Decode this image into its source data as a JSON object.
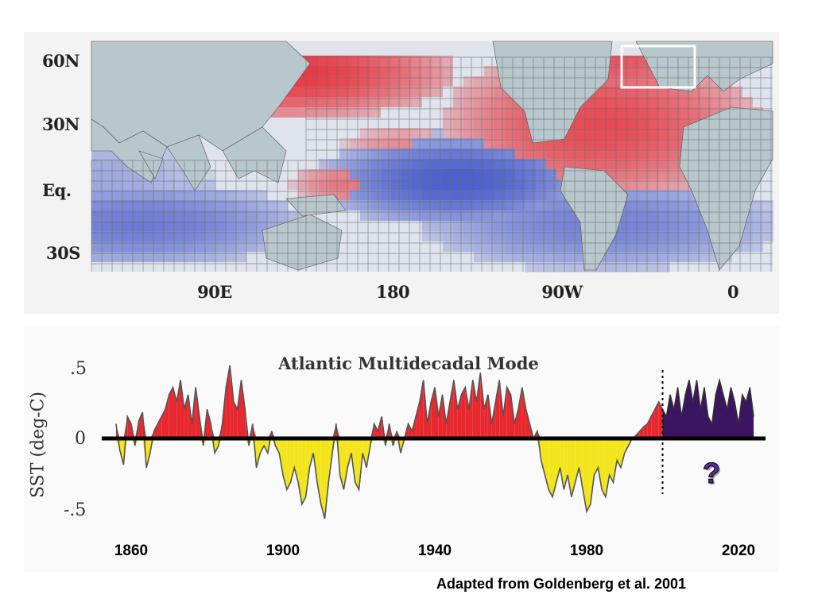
{
  "colors": {
    "ocean": "#dfe3ec",
    "land": "#b7c7cc",
    "warm": "#e8303a",
    "cool": "#3a4fc8",
    "grid": "#6b6b6b",
    "positive": "#e8282e",
    "negative": "#f2e51c",
    "projection": "#3b1560",
    "axis": "#000000"
  },
  "map": {
    "lat_labels": [
      "60N",
      "30N",
      "Eq.",
      "30S"
    ],
    "lon_labels": [
      "90E",
      "180",
      "90W",
      "0"
    ]
  },
  "chart_data": {
    "type": "area",
    "title": "Atlantic Multidecadal Mode",
    "ylabel": "SST (deg-C)",
    "yticks": [
      ".5",
      "0",
      "-.5"
    ],
    "xticks": [
      "1860",
      "1900",
      "1940",
      "1980",
      "2020"
    ],
    "xlim": [
      1856,
      2025
    ],
    "ylim": [
      -0.55,
      0.5
    ],
    "projection_start": 2000,
    "observed": {
      "x": [
        1856,
        1857,
        1858,
        1859,
        1860,
        1861,
        1862,
        1863,
        1864,
        1865,
        1866,
        1867,
        1868,
        1869,
        1870,
        1871,
        1872,
        1873,
        1874,
        1875,
        1876,
        1877,
        1878,
        1879,
        1880,
        1881,
        1882,
        1883,
        1884,
        1885,
        1886,
        1887,
        1888,
        1889,
        1890,
        1891,
        1892,
        1893,
        1894,
        1895,
        1896,
        1897,
        1898,
        1899,
        1900,
        1901,
        1902,
        1903,
        1904,
        1905,
        1906,
        1907,
        1908,
        1909,
        1910,
        1911,
        1912,
        1913,
        1914,
        1915,
        1916,
        1917,
        1918,
        1919,
        1920,
        1921,
        1922,
        1923,
        1924,
        1925,
        1926,
        1927,
        1928,
        1929,
        1930,
        1931,
        1932,
        1933,
        1934,
        1935,
        1936,
        1937,
        1938,
        1939,
        1940,
        1941,
        1942,
        1943,
        1944,
        1945,
        1946,
        1947,
        1948,
        1949,
        1950,
        1951,
        1952,
        1953,
        1954,
        1955,
        1956,
        1957,
        1958,
        1959,
        1960,
        1961,
        1962,
        1963,
        1964,
        1965,
        1966,
        1967,
        1968,
        1969,
        1970,
        1971,
        1972,
        1973,
        1974,
        1975,
        1976,
        1977,
        1978,
        1979,
        1980,
        1981,
        1982,
        1983,
        1984,
        1985,
        1986,
        1987,
        1988,
        1989,
        1990,
        1991,
        1992,
        1993,
        1994,
        1995,
        1996,
        1997,
        1998,
        1999,
        2000
      ],
      "y": [
        0.1,
        -0.08,
        -0.18,
        0.15,
        0.1,
        -0.05,
        0.12,
        0.18,
        -0.2,
        -0.1,
        0.05,
        0.1,
        0.15,
        0.2,
        0.3,
        0.35,
        0.25,
        0.4,
        0.2,
        0.3,
        0.1,
        0.35,
        0.15,
        -0.05,
        0.2,
        0.1,
        -0.1,
        -0.05,
        0.1,
        0.35,
        0.5,
        0.25,
        0.2,
        0.4,
        0.2,
        -0.05,
        0.1,
        -0.2,
        -0.1,
        -0.05,
        -0.1,
        0.05,
        -0.05,
        -0.1,
        -0.25,
        -0.35,
        -0.3,
        -0.2,
        -0.3,
        -0.45,
        -0.4,
        -0.2,
        -0.1,
        -0.3,
        -0.45,
        -0.55,
        -0.3,
        -0.1,
        0.1,
        -0.25,
        -0.35,
        -0.2,
        -0.1,
        -0.3,
        -0.35,
        -0.1,
        -0.2,
        -0.05,
        0.1,
        0.05,
        0.15,
        -0.05,
        0.1,
        -0.05,
        0.05,
        -0.1,
        0.0,
        0.1,
        0.05,
        0.15,
        0.25,
        0.4,
        0.1,
        0.25,
        0.35,
        0.15,
        0.3,
        0.1,
        0.25,
        0.4,
        0.2,
        0.3,
        0.35,
        0.2,
        0.4,
        0.25,
        0.45,
        0.2,
        0.3,
        0.1,
        0.25,
        0.4,
        0.15,
        0.35,
        0.3,
        0.1,
        0.2,
        0.35,
        0.2,
        0.1,
        0.0,
        0.05,
        -0.15,
        -0.25,
        -0.35,
        -0.4,
        -0.3,
        -0.2,
        -0.35,
        -0.25,
        -0.4,
        -0.3,
        -0.2,
        -0.35,
        -0.5,
        -0.45,
        -0.25,
        -0.2,
        -0.35,
        -0.4,
        -0.25,
        -0.3,
        -0.15,
        -0.2,
        -0.1,
        -0.05,
        0.0,
        0.02,
        0.05,
        0.08,
        0.1,
        0.15,
        0.2,
        0.25,
        0.2
      ]
    },
    "projection": {
      "x": [
        2000,
        2001,
        2002,
        2003,
        2004,
        2005,
        2006,
        2007,
        2008,
        2009,
        2010,
        2011,
        2012,
        2013,
        2014,
        2015,
        2016,
        2017,
        2018,
        2019,
        2020,
        2021,
        2022,
        2023,
        2024
      ],
      "y": [
        0.2,
        0.15,
        0.3,
        0.2,
        0.35,
        0.15,
        0.3,
        0.4,
        0.25,
        0.4,
        0.2,
        0.35,
        0.15,
        0.1,
        0.3,
        0.4,
        0.3,
        0.2,
        0.35,
        0.25,
        0.1,
        0.3,
        0.25,
        0.35,
        0.15
      ]
    }
  },
  "annotation": {
    "question": "?"
  },
  "source_note": "Adapted from Goldenberg et al. 2001"
}
